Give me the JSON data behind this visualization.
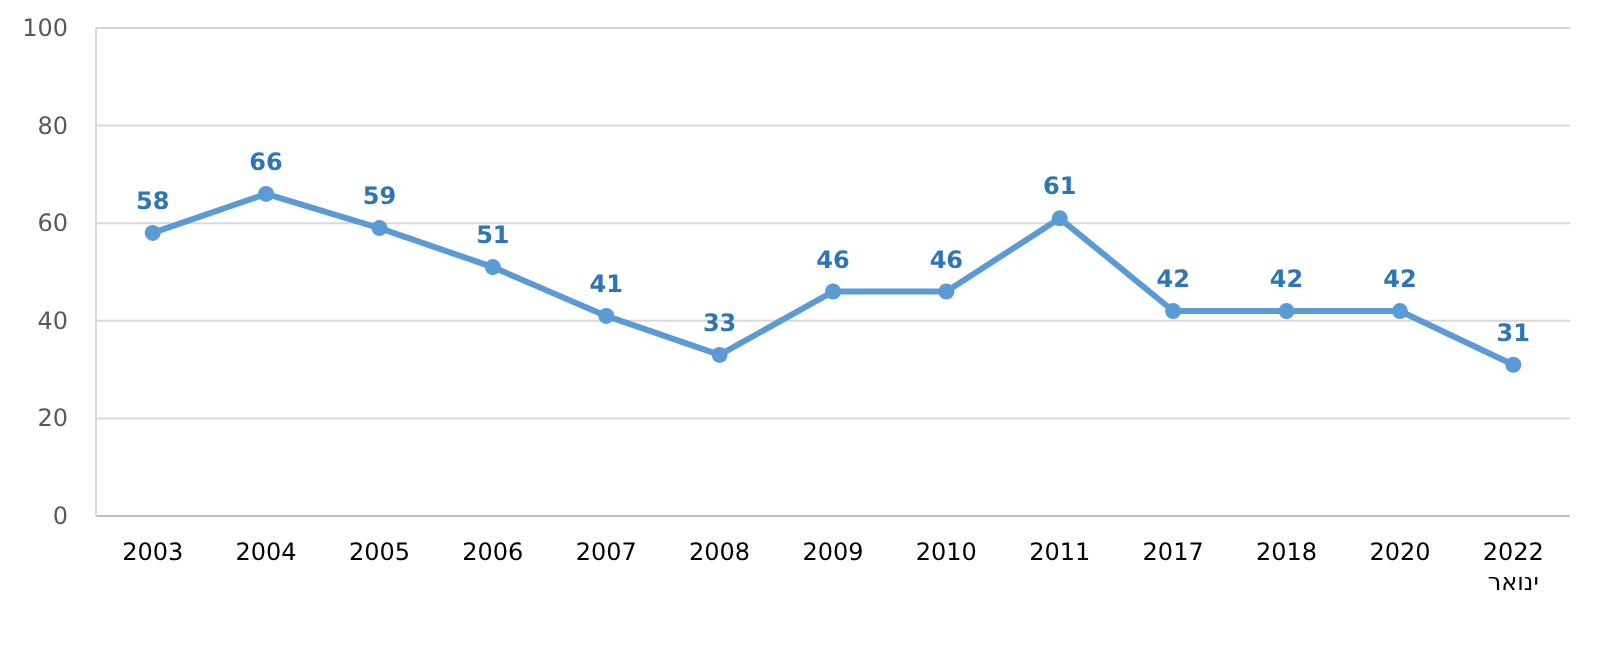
{
  "chart_data": {
    "type": "line",
    "categories": [
      "2003",
      "2004",
      "2005",
      "2006",
      "2007",
      "2008",
      "2009",
      "2010",
      "2011",
      "2017",
      "2018",
      "2020",
      "2022\nינואר"
    ],
    "series": [
      {
        "color": "#5b9bd5",
        "values": [
          58,
          66,
          59,
          51,
          41,
          33,
          46,
          46,
          61,
          42,
          42,
          42,
          31
        ]
      }
    ],
    "ylim": [
      0,
      100
    ],
    "yticks": [
      0,
      20,
      40,
      60,
      80,
      100
    ],
    "grid": "y",
    "marker": "circle",
    "line_style": "solid",
    "data_labels": true
  }
}
